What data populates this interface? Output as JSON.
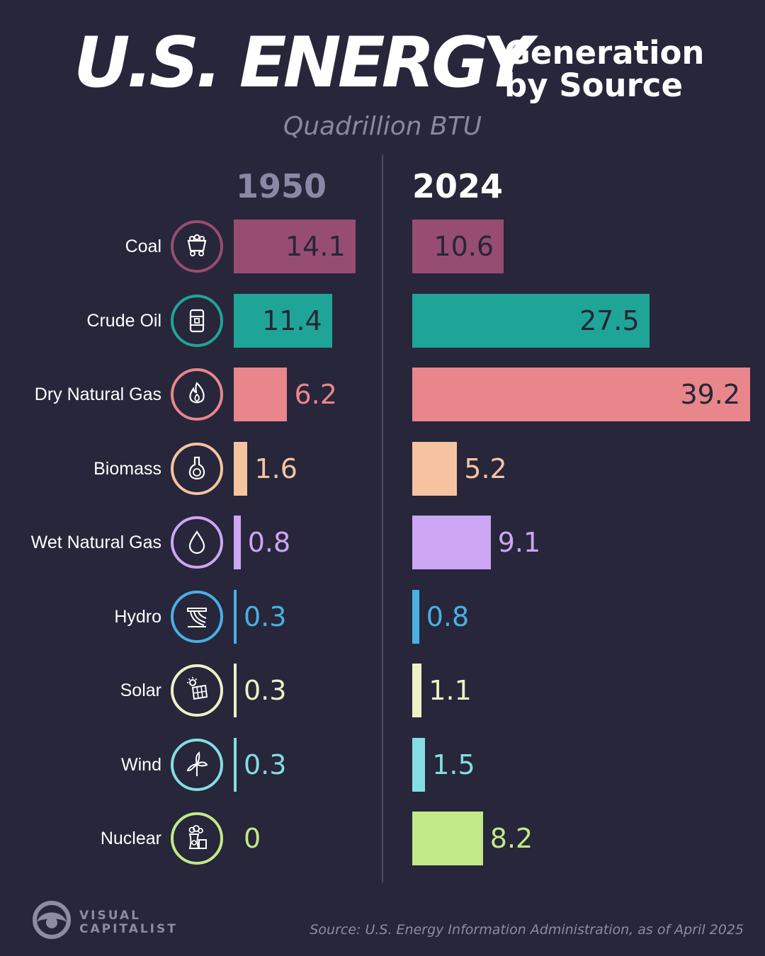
{
  "title": {
    "main": "U.S. ENERGY",
    "side_line1": "Generation",
    "side_line2": "by Source",
    "subtitle": "Quadrillion BTU"
  },
  "chart_data": {
    "type": "bar",
    "title": "U.S. ENERGY Generation by Source",
    "subtitle": "Quadrillion BTU",
    "categories": [
      "Coal",
      "Crude Oil",
      "Dry Natural Gas",
      "Biomass",
      "Wet Natural Gas",
      "Hydro",
      "Solar",
      "Wind",
      "Nuclear"
    ],
    "series": [
      {
        "name": "1950",
        "values": [
          14.1,
          11.4,
          6.2,
          1.6,
          0.8,
          0.3,
          0.3,
          0.3,
          0
        ]
      },
      {
        "name": "2024",
        "values": [
          10.6,
          27.5,
          39.2,
          5.2,
          9.1,
          0.8,
          1.1,
          1.5,
          8.2
        ]
      }
    ],
    "value_labels_1950": [
      "14.1",
      "11.4",
      "6.2",
      "1.6",
      "0.8",
      "0.3",
      "0.3",
      "0.3",
      "0"
    ],
    "value_labels_2024": [
      "10.6",
      "27.5",
      "39.2",
      "5.2",
      "9.1",
      "0.8",
      "1.1",
      "1.5",
      "8.2"
    ],
    "colors": [
      "#974d71",
      "#1fa597",
      "#e8868b",
      "#f6c3a1",
      "#cda6f4",
      "#4aafe5",
      "#eef1c4",
      "#84dde2",
      "#c2e987"
    ],
    "icons": [
      "coal-cart-icon",
      "oil-barrel-icon",
      "flame-icon",
      "flask-icon",
      "droplet-icon",
      "dam-icon",
      "solar-panel-icon",
      "wind-turbine-icon",
      "nuclear-plant-icon"
    ],
    "orientation": "horizontal",
    "grid": false,
    "legend": "none"
  },
  "footer": {
    "logo_line1": "VISUAL",
    "logo_line2": "CAPITALIST",
    "source": "Source: U.S. Energy Information Administration, as of April 2025"
  }
}
